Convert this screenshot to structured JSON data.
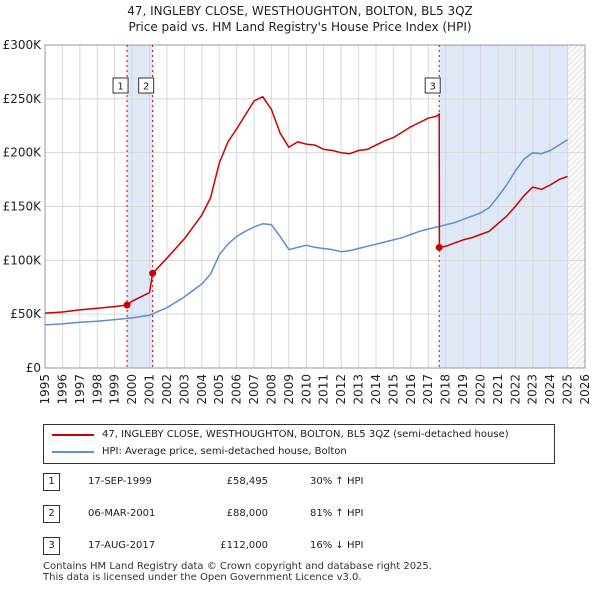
{
  "title_line1": "47, INGLEBY CLOSE, WESTHOUGHTON, BOLTON, BL5 3QZ",
  "title_line2": "Price paid vs. HM Land Registry's House Price Index (HPI)",
  "colors": {
    "property": "#cc0000",
    "hpi": "#5b8fcf",
    "shade": "#dfe8f7",
    "grid": "#d8d8d8",
    "marker": "#cc0000"
  },
  "chart_data": {
    "type": "line",
    "xlim": [
      1995,
      2026
    ],
    "ylim": [
      0,
      300000
    ],
    "y_ticks": [
      {
        "value": 0,
        "label": "£0"
      },
      {
        "value": 50000,
        "label": "£50K"
      },
      {
        "value": 100000,
        "label": "£100K"
      },
      {
        "value": 150000,
        "label": "£150K"
      },
      {
        "value": 200000,
        "label": "£200K"
      },
      {
        "value": 250000,
        "label": "£250K"
      },
      {
        "value": 300000,
        "label": "£300K"
      }
    ],
    "x_ticks": [
      "1995",
      "1996",
      "1997",
      "1998",
      "1999",
      "2000",
      "2001",
      "2002",
      "2003",
      "2004",
      "2005",
      "2006",
      "2007",
      "2008",
      "2009",
      "2010",
      "2011",
      "2012",
      "2013",
      "2014",
      "2015",
      "2016",
      "2017",
      "2018",
      "2019",
      "2020",
      "2021",
      "2022",
      "2023",
      "2024",
      "2025",
      "2026"
    ],
    "shaded_ranges": [
      [
        1999.71,
        2001.18
      ],
      [
        2017.63,
        2025.0
      ]
    ],
    "hatched_after": 2025.0,
    "series": [
      {
        "name": "47, INGLEBY CLOSE, WESTHOUGHTON, BOLTON, BL5 3QZ (semi-detached house)",
        "x": [
          1995,
          1996,
          1997,
          1998,
          1999,
          1999.71,
          2000,
          2001,
          2001.18,
          2002,
          2003,
          2004,
          2004.5,
          2005,
          2005.5,
          2006,
          2006.5,
          2007,
          2007.5,
          2008,
          2008.5,
          2009,
          2009.5,
          2010,
          2010.5,
          2011,
          2011.5,
          2012,
          2012.5,
          2013,
          2013.5,
          2014,
          2014.5,
          2015,
          2015.5,
          2016,
          2016.5,
          2017,
          2017.5,
          2017.63,
          2017.64,
          2018,
          2018.5,
          2019,
          2019.5,
          2020,
          2020.5,
          2021,
          2021.5,
          2022,
          2022.5,
          2023,
          2023.5,
          2024,
          2024.5,
          2025
        ],
        "values": [
          51000,
          52000,
          54000,
          55500,
          57000,
          58495,
          62000,
          70000,
          88000,
          102000,
          120000,
          142000,
          158000,
          190000,
          210000,
          222000,
          235000,
          248000,
          252000,
          240000,
          218000,
          205000,
          210000,
          208000,
          207000,
          203000,
          202000,
          200000,
          199000,
          202000,
          203000,
          207000,
          211000,
          214000,
          219000,
          224000,
          228000,
          232000,
          234000,
          236000,
          112000,
          113000,
          116000,
          119000,
          121000,
          124000,
          127000,
          134000,
          141000,
          150000,
          160000,
          168000,
          166000,
          170000,
          175000,
          178000
        ]
      },
      {
        "name": "HPI: Average price, semi-detached house, Bolton",
        "x": [
          1995,
          1996,
          1997,
          1998,
          1999,
          2000,
          2001,
          2002,
          2003,
          2004,
          2004.5,
          2005,
          2005.5,
          2006,
          2006.5,
          2007,
          2007.5,
          2008,
          2008.5,
          2009,
          2009.5,
          2010,
          2010.5,
          2011,
          2011.5,
          2012,
          2012.5,
          2013,
          2013.5,
          2014,
          2014.5,
          2015,
          2015.5,
          2016,
          2016.5,
          2017,
          2017.5,
          2018,
          2018.5,
          2019,
          2019.5,
          2020,
          2020.5,
          2021,
          2021.5,
          2022,
          2022.5,
          2023,
          2023.5,
          2024,
          2024.5,
          2025
        ],
        "values": [
          40000,
          41000,
          42500,
          43500,
          45000,
          46500,
          49000,
          56000,
          66000,
          78000,
          87000,
          105000,
          115000,
          122000,
          127000,
          131000,
          134000,
          133000,
          122000,
          110000,
          112000,
          114000,
          112000,
          111000,
          110000,
          108000,
          109000,
          111000,
          113000,
          115000,
          117000,
          119000,
          121000,
          124000,
          127000,
          129000,
          131000,
          133000,
          135000,
          138000,
          141000,
          144000,
          149000,
          159000,
          170000,
          183000,
          194000,
          200000,
          199000,
          202000,
          207000,
          212000
        ]
      }
    ],
    "annotations": [
      {
        "label": "1",
        "x": 1999.71,
        "y": 58495
      },
      {
        "label": "2",
        "x": 2001.18,
        "y": 88000
      },
      {
        "label": "3",
        "x": 2017.63,
        "y": 112000
      }
    ]
  },
  "legend": {
    "property_label": "47, INGLEBY CLOSE, WESTHOUGHTON, BOLTON, BL5 3QZ (semi-detached house)",
    "hpi_label": "HPI: Average price, semi-detached house, Bolton"
  },
  "transactions": [
    {
      "num": "1",
      "date": "17-SEP-1999",
      "price": "£58,495",
      "hpi": "30% ↑ HPI"
    },
    {
      "num": "2",
      "date": "06-MAR-2001",
      "price": "£88,000",
      "hpi": "81% ↑ HPI"
    },
    {
      "num": "3",
      "date": "17-AUG-2017",
      "price": "£112,000",
      "hpi": "16% ↓ HPI"
    }
  ],
  "footer_line1": "Contains HM Land Registry data © Crown copyright and database right 2025.",
  "footer_line2": "This data is licensed under the Open Government Licence v3.0."
}
